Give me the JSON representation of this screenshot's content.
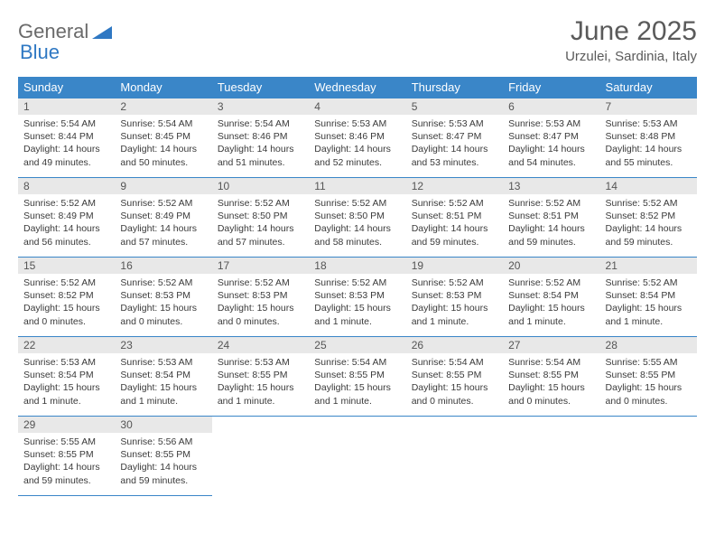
{
  "logo": {
    "word1": "General",
    "word2": "Blue"
  },
  "title": "June 2025",
  "location": "Urzulei, Sardinia, Italy",
  "colors": {
    "header_bg": "#3a86c8",
    "header_text": "#ffffff",
    "daynum_bg": "#e8e8e8",
    "row_border": "#3a86c8",
    "body_text": "#3a3a3a",
    "title_text": "#5a5a5a",
    "logo_gray": "#6a6a6a",
    "logo_blue": "#2f78c3",
    "page_bg": "#ffffff"
  },
  "typography": {
    "title_fontsize": 30,
    "location_fontsize": 15,
    "header_fontsize": 13,
    "daynum_fontsize": 12,
    "cell_fontsize": 10.5,
    "font_family": "Arial"
  },
  "weekdays": [
    "Sunday",
    "Monday",
    "Tuesday",
    "Wednesday",
    "Thursday",
    "Friday",
    "Saturday"
  ],
  "weeks": [
    [
      {
        "n": "1",
        "sr": "Sunrise: 5:54 AM",
        "ss": "Sunset: 8:44 PM",
        "d1": "Daylight: 14 hours",
        "d2": "and 49 minutes."
      },
      {
        "n": "2",
        "sr": "Sunrise: 5:54 AM",
        "ss": "Sunset: 8:45 PM",
        "d1": "Daylight: 14 hours",
        "d2": "and 50 minutes."
      },
      {
        "n": "3",
        "sr": "Sunrise: 5:54 AM",
        "ss": "Sunset: 8:46 PM",
        "d1": "Daylight: 14 hours",
        "d2": "and 51 minutes."
      },
      {
        "n": "4",
        "sr": "Sunrise: 5:53 AM",
        "ss": "Sunset: 8:46 PM",
        "d1": "Daylight: 14 hours",
        "d2": "and 52 minutes."
      },
      {
        "n": "5",
        "sr": "Sunrise: 5:53 AM",
        "ss": "Sunset: 8:47 PM",
        "d1": "Daylight: 14 hours",
        "d2": "and 53 minutes."
      },
      {
        "n": "6",
        "sr": "Sunrise: 5:53 AM",
        "ss": "Sunset: 8:47 PM",
        "d1": "Daylight: 14 hours",
        "d2": "and 54 minutes."
      },
      {
        "n": "7",
        "sr": "Sunrise: 5:53 AM",
        "ss": "Sunset: 8:48 PM",
        "d1": "Daylight: 14 hours",
        "d2": "and 55 minutes."
      }
    ],
    [
      {
        "n": "8",
        "sr": "Sunrise: 5:52 AM",
        "ss": "Sunset: 8:49 PM",
        "d1": "Daylight: 14 hours",
        "d2": "and 56 minutes."
      },
      {
        "n": "9",
        "sr": "Sunrise: 5:52 AM",
        "ss": "Sunset: 8:49 PM",
        "d1": "Daylight: 14 hours",
        "d2": "and 57 minutes."
      },
      {
        "n": "10",
        "sr": "Sunrise: 5:52 AM",
        "ss": "Sunset: 8:50 PM",
        "d1": "Daylight: 14 hours",
        "d2": "and 57 minutes."
      },
      {
        "n": "11",
        "sr": "Sunrise: 5:52 AM",
        "ss": "Sunset: 8:50 PM",
        "d1": "Daylight: 14 hours",
        "d2": "and 58 minutes."
      },
      {
        "n": "12",
        "sr": "Sunrise: 5:52 AM",
        "ss": "Sunset: 8:51 PM",
        "d1": "Daylight: 14 hours",
        "d2": "and 59 minutes."
      },
      {
        "n": "13",
        "sr": "Sunrise: 5:52 AM",
        "ss": "Sunset: 8:51 PM",
        "d1": "Daylight: 14 hours",
        "d2": "and 59 minutes."
      },
      {
        "n": "14",
        "sr": "Sunrise: 5:52 AM",
        "ss": "Sunset: 8:52 PM",
        "d1": "Daylight: 14 hours",
        "d2": "and 59 minutes."
      }
    ],
    [
      {
        "n": "15",
        "sr": "Sunrise: 5:52 AM",
        "ss": "Sunset: 8:52 PM",
        "d1": "Daylight: 15 hours",
        "d2": "and 0 minutes."
      },
      {
        "n": "16",
        "sr": "Sunrise: 5:52 AM",
        "ss": "Sunset: 8:53 PM",
        "d1": "Daylight: 15 hours",
        "d2": "and 0 minutes."
      },
      {
        "n": "17",
        "sr": "Sunrise: 5:52 AM",
        "ss": "Sunset: 8:53 PM",
        "d1": "Daylight: 15 hours",
        "d2": "and 0 minutes."
      },
      {
        "n": "18",
        "sr": "Sunrise: 5:52 AM",
        "ss": "Sunset: 8:53 PM",
        "d1": "Daylight: 15 hours",
        "d2": "and 1 minute."
      },
      {
        "n": "19",
        "sr": "Sunrise: 5:52 AM",
        "ss": "Sunset: 8:53 PM",
        "d1": "Daylight: 15 hours",
        "d2": "and 1 minute."
      },
      {
        "n": "20",
        "sr": "Sunrise: 5:52 AM",
        "ss": "Sunset: 8:54 PM",
        "d1": "Daylight: 15 hours",
        "d2": "and 1 minute."
      },
      {
        "n": "21",
        "sr": "Sunrise: 5:52 AM",
        "ss": "Sunset: 8:54 PM",
        "d1": "Daylight: 15 hours",
        "d2": "and 1 minute."
      }
    ],
    [
      {
        "n": "22",
        "sr": "Sunrise: 5:53 AM",
        "ss": "Sunset: 8:54 PM",
        "d1": "Daylight: 15 hours",
        "d2": "and 1 minute."
      },
      {
        "n": "23",
        "sr": "Sunrise: 5:53 AM",
        "ss": "Sunset: 8:54 PM",
        "d1": "Daylight: 15 hours",
        "d2": "and 1 minute."
      },
      {
        "n": "24",
        "sr": "Sunrise: 5:53 AM",
        "ss": "Sunset: 8:55 PM",
        "d1": "Daylight: 15 hours",
        "d2": "and 1 minute."
      },
      {
        "n": "25",
        "sr": "Sunrise: 5:54 AM",
        "ss": "Sunset: 8:55 PM",
        "d1": "Daylight: 15 hours",
        "d2": "and 1 minute."
      },
      {
        "n": "26",
        "sr": "Sunrise: 5:54 AM",
        "ss": "Sunset: 8:55 PM",
        "d1": "Daylight: 15 hours",
        "d2": "and 0 minutes."
      },
      {
        "n": "27",
        "sr": "Sunrise: 5:54 AM",
        "ss": "Sunset: 8:55 PM",
        "d1": "Daylight: 15 hours",
        "d2": "and 0 minutes."
      },
      {
        "n": "28",
        "sr": "Sunrise: 5:55 AM",
        "ss": "Sunset: 8:55 PM",
        "d1": "Daylight: 15 hours",
        "d2": "and 0 minutes."
      }
    ],
    [
      {
        "n": "29",
        "sr": "Sunrise: 5:55 AM",
        "ss": "Sunset: 8:55 PM",
        "d1": "Daylight: 14 hours",
        "d2": "and 59 minutes."
      },
      {
        "n": "30",
        "sr": "Sunrise: 5:56 AM",
        "ss": "Sunset: 8:55 PM",
        "d1": "Daylight: 14 hours",
        "d2": "and 59 minutes."
      },
      null,
      null,
      null,
      null,
      null
    ]
  ]
}
